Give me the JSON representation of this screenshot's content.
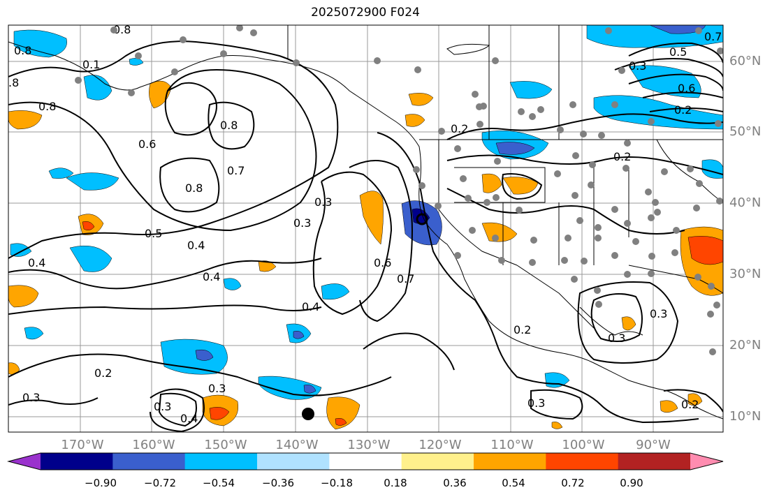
{
  "title": "2025072900 F024",
  "lon_labels": [
    "170°W",
    "160°W",
    "150°W",
    "140°W",
    "130°W",
    "120°W",
    "110°W",
    "100°W",
    "90°W"
  ],
  "lat_labels": [
    "60°N",
    "50°N",
    "40°N",
    "30°N",
    "20°N",
    "10°N"
  ],
  "colorbar": {
    "ticks": [
      "−0.90",
      "−0.72",
      "−0.54",
      "−0.36",
      "−0.18",
      "0.18",
      "0.36",
      "0.54",
      "0.72",
      "0.90"
    ],
    "colors": [
      "#9a32cd",
      "#00008b",
      "#3a5fcd",
      "#00bfff",
      "#b0e2ff",
      "#ffffff",
      "#fff08c",
      "#ffa500",
      "#ff4500",
      "#b22222",
      "#ff8cb0"
    ]
  },
  "contour_labels": [
    "0.8",
    "0.1",
    ".8",
    "0.8",
    "0.6",
    "0.8",
    "0.8",
    "0.7",
    "0.5",
    "0.4",
    "0.3",
    "0.3",
    "0.4",
    "0.4",
    "0.4",
    "0.6",
    "0.7",
    "0.2",
    "0.2",
    "0.2",
    "0.3",
    "0.3",
    "0.2",
    "0.3",
    "0.3",
    "0.4",
    "0.3",
    "0.3",
    "0.2",
    "0.3",
    "0.5",
    "0.6",
    "0.7",
    "0.2",
    "0.8"
  ]
}
